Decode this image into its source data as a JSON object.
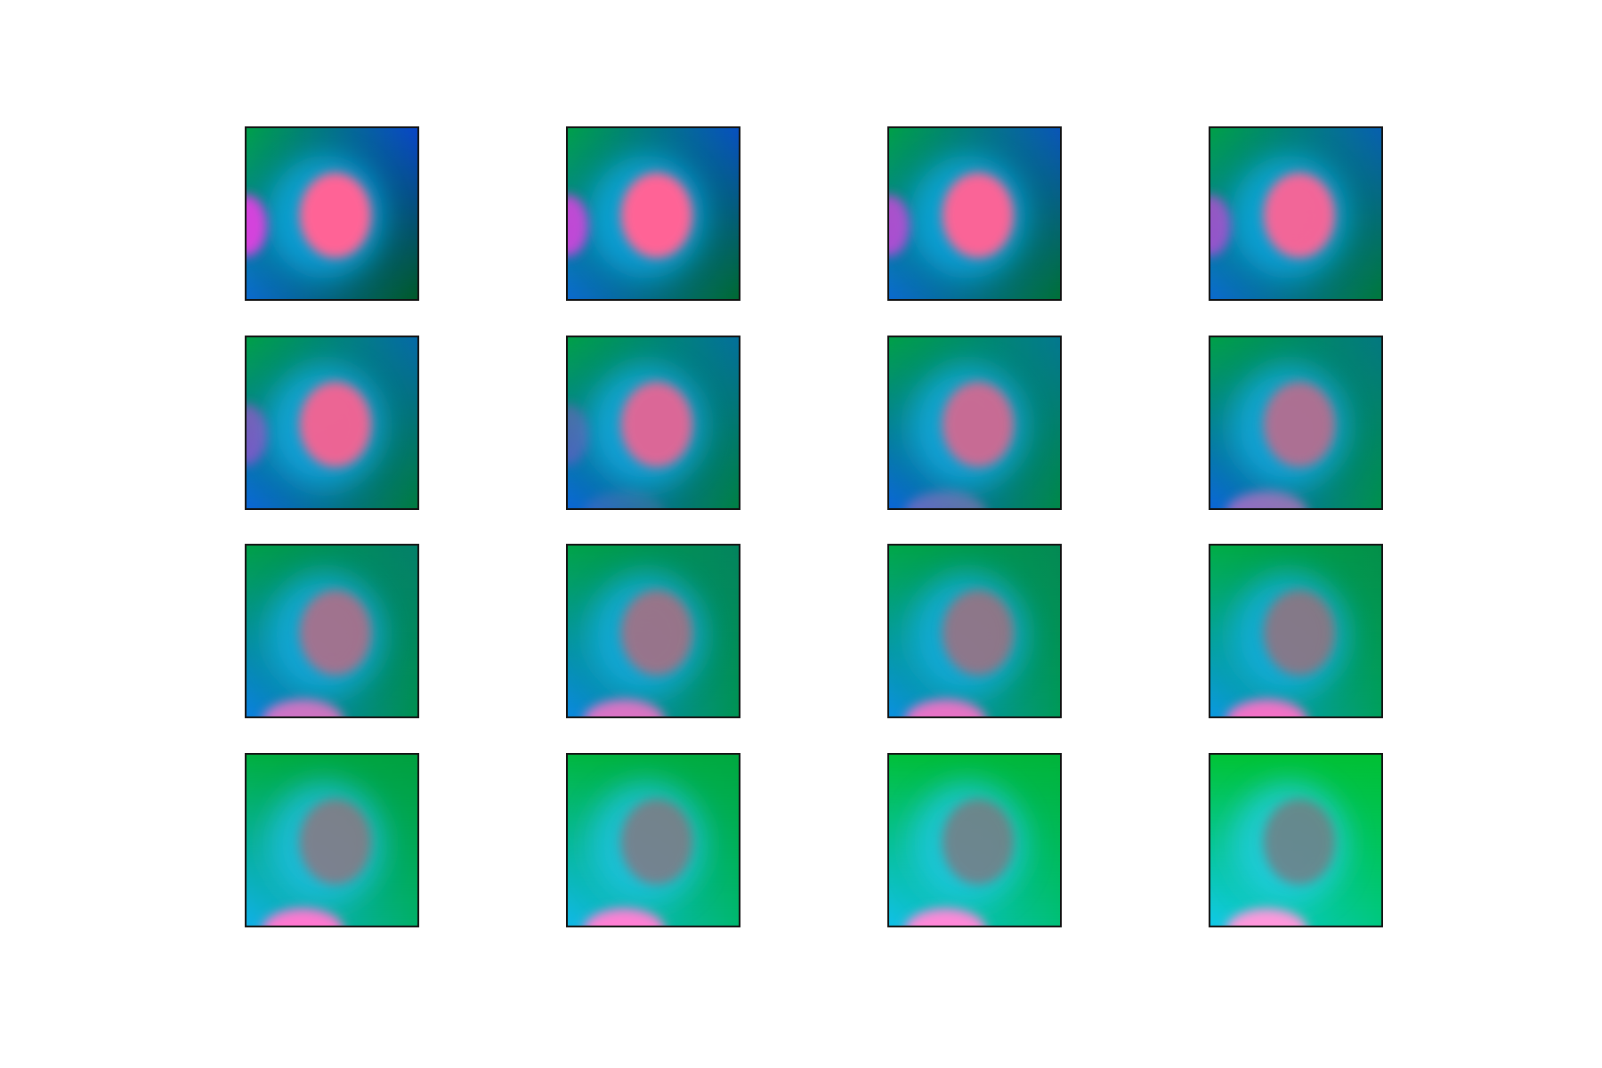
{
  "grid": {
    "rows": 4,
    "cols": 4
  },
  "tiles": [
    {
      "tl": "#00a04a",
      "tr": "#0a46c8",
      "bl": "#0a6ad0",
      "br": "#005a28",
      "glow": "#10b0f0",
      "blob": "#ff6496",
      "blob_opacity": 1.0,
      "side": "#e040e0",
      "side_opacity": 0.95,
      "bottom": "#ff70c8",
      "bottom_opacity": 0.0
    },
    {
      "tl": "#00a04a",
      "tr": "#0850c0",
      "bl": "#0a6ad0",
      "br": "#006a32",
      "glow": "#10b0f0",
      "blob": "#ff6496",
      "blob_opacity": 1.0,
      "side": "#e040e0",
      "side_opacity": 0.85,
      "bottom": "#ff70c8",
      "bottom_opacity": 0.0
    },
    {
      "tl": "#00a048",
      "tr": "#0a56b8",
      "bl": "#0a6ad0",
      "br": "#007038",
      "glow": "#10b0f0",
      "blob": "#ff6496",
      "blob_opacity": 0.98,
      "side": "#e040e0",
      "side_opacity": 0.75,
      "bottom": "#ff70c8",
      "bottom_opacity": 0.0
    },
    {
      "tl": "#00a048",
      "tr": "#0860b0",
      "bl": "#0a6ad0",
      "br": "#00783c",
      "glow": "#10b0f0",
      "blob": "#ff6496",
      "blob_opacity": 0.95,
      "side": "#e040e0",
      "side_opacity": 0.65,
      "bottom": "#ff70c8",
      "bottom_opacity": 0.0
    },
    {
      "tl": "#00a048",
      "tr": "#066aa8",
      "bl": "#0a66d8",
      "br": "#007c40",
      "glow": "#14b0f0",
      "blob": "#ff6090",
      "blob_opacity": 0.92,
      "side": "#e040e0",
      "side_opacity": 0.5,
      "bottom": "#ff70c8",
      "bottom_opacity": 0.0
    },
    {
      "tl": "#00a048",
      "tr": "#04709c",
      "bl": "#0a66d8",
      "br": "#008044",
      "glow": "#14b0f0",
      "blob": "#f86090",
      "blob_opacity": 0.88,
      "side": "#e040e0",
      "side_opacity": 0.3,
      "bottom": "#ff70c8",
      "bottom_opacity": 0.15
    },
    {
      "tl": "#00a048",
      "tr": "#047890",
      "bl": "#0a66d8",
      "br": "#008848",
      "glow": "#14b0f0",
      "blob": "#f06088",
      "blob_opacity": 0.82,
      "side": "#e040e0",
      "side_opacity": 0.0,
      "bottom": "#ff70c8",
      "bottom_opacity": 0.35
    },
    {
      "tl": "#00a048",
      "tr": "#047880",
      "bl": "#0a66d8",
      "br": "#00904c",
      "glow": "#14b0f0",
      "blob": "#e06080",
      "blob_opacity": 0.75,
      "side": "#e040e0",
      "side_opacity": 0.0,
      "bottom": "#ff70c8",
      "bottom_opacity": 0.55
    },
    {
      "tl": "#00a048",
      "tr": "#04806a",
      "bl": "#0a80e0",
      "br": "#009050",
      "glow": "#18b0f0",
      "blob": "#d86078",
      "blob_opacity": 0.72,
      "side": "#e040e0",
      "side_opacity": 0.0,
      "bottom": "#ff70c8",
      "bottom_opacity": 0.8
    },
    {
      "tl": "#00a448",
      "tr": "#04845e",
      "bl": "#0a88e0",
      "br": "#009454",
      "glow": "#18b0f0",
      "blob": "#d06070",
      "blob_opacity": 0.7,
      "side": "#e040e0",
      "side_opacity": 0.0,
      "bottom": "#ff70c8",
      "bottom_opacity": 0.85
    },
    {
      "tl": "#00a848",
      "tr": "#048a54",
      "bl": "#0a90e0",
      "br": "#009a58",
      "glow": "#18b0f0",
      "blob": "#c8606c",
      "blob_opacity": 0.68,
      "side": "#e040e0",
      "side_opacity": 0.0,
      "bottom": "#ff70c8",
      "bottom_opacity": 0.9
    },
    {
      "tl": "#00ae46",
      "tr": "#04904a",
      "bl": "#0a98e0",
      "br": "#00a05c",
      "glow": "#18b0f0",
      "blob": "#c06068",
      "blob_opacity": 0.66,
      "side": "#e040e0",
      "side_opacity": 0.0,
      "bottom": "#ff70c8",
      "bottom_opacity": 0.95
    },
    {
      "tl": "#00b040",
      "tr": "#00a040",
      "bl": "#10b0e8",
      "br": "#00b068",
      "glow": "#20c0f0",
      "blob": "#b85e68",
      "blob_opacity": 0.62,
      "side": "#e040e0",
      "side_opacity": 0.0,
      "bottom": "#ff78d0",
      "bottom_opacity": 1.0
    },
    {
      "tl": "#00b840",
      "tr": "#00a840",
      "bl": "#10b8e8",
      "br": "#00b870",
      "glow": "#20c4f0",
      "blob": "#b05c66",
      "blob_opacity": 0.6,
      "side": "#e040e0",
      "side_opacity": 0.0,
      "bottom": "#ff80d4",
      "bottom_opacity": 1.0
    },
    {
      "tl": "#00c03a",
      "tr": "#00b43a",
      "bl": "#10c0e8",
      "br": "#00c078",
      "glow": "#24c8f0",
      "blob": "#a85a64",
      "blob_opacity": 0.58,
      "side": "#e040e0",
      "side_opacity": 0.0,
      "bottom": "#ff88d8",
      "bottom_opacity": 1.0
    },
    {
      "tl": "#00c436",
      "tr": "#00c034",
      "bl": "#10c8e8",
      "br": "#00c880",
      "glow": "#28ccf0",
      "blob": "#a05862",
      "blob_opacity": 0.56,
      "side": "#e040e0",
      "side_opacity": 0.0,
      "bottom": "#ff98dc",
      "bottom_opacity": 1.0
    }
  ]
}
